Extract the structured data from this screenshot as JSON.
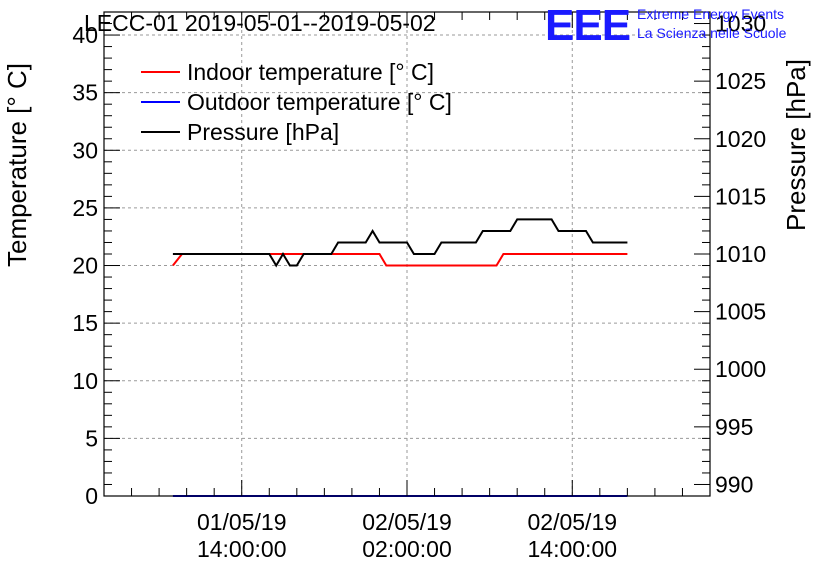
{
  "title": "LECC-01 2019-05-01--2019-05-02",
  "logo": {
    "mark": "EEE",
    "line1": "Extreme Energy Events",
    "line2": "La Scienza nelle Scuole",
    "color": "#1a1aff"
  },
  "chart_data": {
    "type": "line",
    "title": "LECC-01 2019-05-01--2019-05-02",
    "ylabel": "Temperature [° C]",
    "y2label": "Pressure [hPa]",
    "xlabel": "",
    "ylim": [
      0,
      42
    ],
    "y2lim": [
      989,
      1031
    ],
    "yticks": [
      0,
      5,
      10,
      15,
      20,
      25,
      30,
      35,
      40
    ],
    "y2ticks": [
      990,
      995,
      1000,
      1005,
      1010,
      1015,
      1020,
      1025,
      1030
    ],
    "xlim_hours_since": "2019-05-01 09:00:00",
    "xlim": [
      "2019-05-01 04:00:00",
      "2019-05-03 00:00:00"
    ],
    "xticks": [
      {
        "line1": "01/05/19",
        "line2": "14:00:00",
        "x": "2019-05-01 14:00:00"
      },
      {
        "line1": "02/05/19",
        "line2": "02:00:00",
        "x": "2019-05-02 02:00:00"
      },
      {
        "line1": "02/05/19",
        "line2": "14:00:00",
        "x": "2019-05-02 14:00:00"
      }
    ],
    "grid": true,
    "legend_position": "top-left",
    "series": [
      {
        "name": "Indoor temperature [° C]",
        "axis": "left",
        "color": "#ff0000",
        "x": [
          "2019-05-01 09:00:00",
          "2019-05-01 09:40:00",
          "2019-05-01 16:00:00",
          "2019-05-01 20:00:00",
          "2019-05-02 00:00:00",
          "2019-05-02 00:30:00",
          "2019-05-02 08:30:00",
          "2019-05-02 09:00:00",
          "2019-05-02 17:00:00",
          "2019-05-02 18:00:00"
        ],
        "values": [
          20,
          21,
          21,
          21,
          21,
          20,
          20,
          21,
          21,
          21
        ]
      },
      {
        "name": "Outdoor temperature [° C]",
        "axis": "left",
        "color": "#0000ff",
        "x": [
          "2019-05-01 09:00:00",
          "2019-05-02 18:00:00"
        ],
        "values": [
          0,
          0
        ]
      },
      {
        "name": "Pressure [hPa]",
        "axis": "right",
        "color": "#000000",
        "x": [
          "2019-05-01 09:00:00",
          "2019-05-01 16:00:00",
          "2019-05-01 16:30:00",
          "2019-05-01 17:00:00",
          "2019-05-01 17:30:00",
          "2019-05-01 18:00:00",
          "2019-05-01 18:30:00",
          "2019-05-01 20:30:00",
          "2019-05-01 21:00:00",
          "2019-05-01 23:00:00",
          "2019-05-01 23:30:00",
          "2019-05-02 00:00:00",
          "2019-05-02 02:00:00",
          "2019-05-02 02:30:00",
          "2019-05-02 04:00:00",
          "2019-05-02 04:30:00",
          "2019-05-02 07:00:00",
          "2019-05-02 07:30:00",
          "2019-05-02 09:30:00",
          "2019-05-02 10:00:00",
          "2019-05-02 12:30:00",
          "2019-05-02 13:00:00",
          "2019-05-02 15:00:00",
          "2019-05-02 15:30:00",
          "2019-05-02 18:00:00"
        ],
        "values": [
          1010,
          1010,
          1009,
          1010,
          1009,
          1009,
          1010,
          1010,
          1011,
          1011,
          1012,
          1011,
          1011,
          1010,
          1010,
          1011,
          1011,
          1012,
          1012,
          1013,
          1013,
          1012,
          1012,
          1011,
          1011
        ]
      }
    ]
  }
}
